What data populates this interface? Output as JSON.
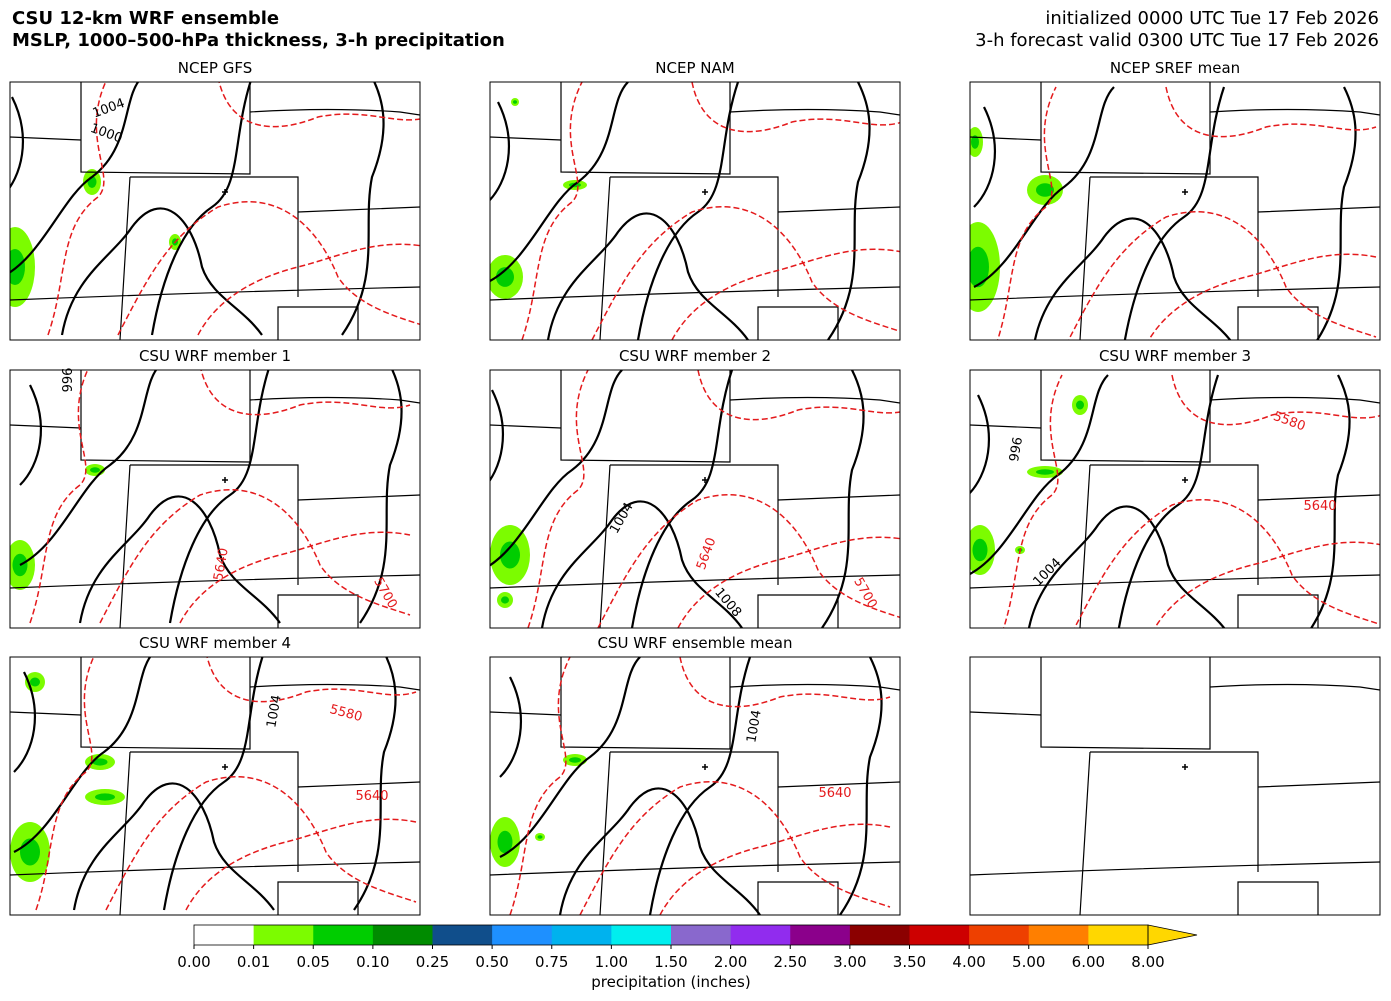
{
  "header": {
    "title_lines": [
      "CSU 12-km WRF ensemble",
      "MSLP, 1000–500-hPa thickness, 3-h precipitation"
    ],
    "info_lines": [
      "initialized 0000 UTC Tue 17 Feb 2026",
      "3-h forecast valid 0300 UTC Tue 17 Feb 2026"
    ]
  },
  "panels": [
    {
      "title": "NCEP GFS",
      "contour_labels": [
        {
          "text": "1004",
          "color": "#000000"
        },
        {
          "text": "1000",
          "color": "#000000"
        }
      ]
    },
    {
      "title": "NCEP NAM",
      "contour_labels": []
    },
    {
      "title": "NCEP SREF mean",
      "contour_labels": []
    },
    {
      "title": "CSU WRF member 1",
      "contour_labels": [
        {
          "text": "996",
          "color": "#000000"
        },
        {
          "text": "5640",
          "color": "#e41a1c"
        },
        {
          "text": "5700",
          "color": "#e41a1c"
        }
      ]
    },
    {
      "title": "CSU WRF member 2",
      "contour_labels": [
        {
          "text": "1004",
          "color": "#000000"
        },
        {
          "text": "5640",
          "color": "#e41a1c"
        },
        {
          "text": "1008",
          "color": "#000000"
        },
        {
          "text": "5700",
          "color": "#e41a1c"
        }
      ]
    },
    {
      "title": "CSU WRF member 3",
      "contour_labels": [
        {
          "text": "5580",
          "color": "#e41a1c"
        },
        {
          "text": "996",
          "color": "#000000"
        },
        {
          "text": "5640",
          "color": "#e41a1c"
        },
        {
          "text": "1004",
          "color": "#000000"
        }
      ]
    },
    {
      "title": "CSU WRF member 4",
      "contour_labels": [
        {
          "text": "1004",
          "color": "#000000"
        },
        {
          "text": "5580",
          "color": "#e41a1c"
        },
        {
          "text": "5640",
          "color": "#e41a1c"
        }
      ]
    },
    {
      "title": "CSU WRF ensemble mean",
      "contour_labels": [
        {
          "text": "1004",
          "color": "#000000"
        },
        {
          "text": "5640",
          "color": "#e41a1c"
        }
      ]
    },
    {
      "title": null,
      "contour_labels": []
    }
  ],
  "colorbar": {
    "label": "precipitation (inches)",
    "bounds": [
      {
        "value": 0,
        "label": "0.00"
      },
      {
        "value": 0.01,
        "label": "0.01"
      },
      {
        "value": 0.05,
        "label": "0.05"
      },
      {
        "value": 0.1,
        "label": "0.10"
      },
      {
        "value": 0.25,
        "label": "0.25"
      },
      {
        "value": 0.5,
        "label": "0.50"
      },
      {
        "value": 0.75,
        "label": "0.75"
      },
      {
        "value": 1,
        "label": "1.00"
      },
      {
        "value": 1.5,
        "label": "1.50"
      },
      {
        "value": 2,
        "label": "2.00"
      },
      {
        "value": 2.5,
        "label": "2.50"
      },
      {
        "value": 3,
        "label": "3.00"
      },
      {
        "value": 3.5,
        "label": "3.50"
      },
      {
        "value": 4,
        "label": "4.00"
      },
      {
        "value": 5,
        "label": "5.00"
      },
      {
        "value": 6,
        "label": "6.00"
      },
      {
        "value": 8,
        "label": "8.00"
      }
    ],
    "colors": [
      "#ffffff",
      "#7cfc00",
      "#00cd00",
      "#008b00",
      "#104e8b",
      "#1e90ff",
      "#00b2ee",
      "#00eeee",
      "#8968cd",
      "#912cee",
      "#8b008b",
      "#8b0000",
      "#cd0000",
      "#ee4000",
      "#ff7f00",
      "#ffd700"
    ],
    "extend_color": "#ffd700"
  }
}
